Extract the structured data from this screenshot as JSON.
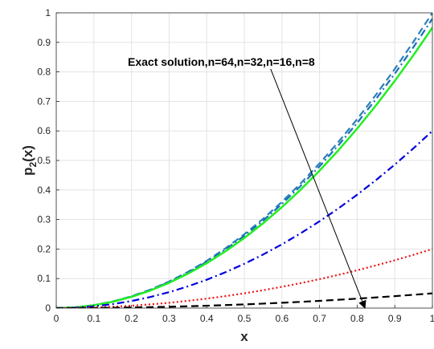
{
  "chart_data": {
    "type": "line",
    "title": "",
    "xlabel": "x",
    "ylabel_main": "p",
    "ylabel_sub": "2",
    "ylabel_tail": "(x)",
    "xlim": [
      0,
      1
    ],
    "ylim": [
      0,
      1
    ],
    "grid": true,
    "xticks": [
      0,
      0.1,
      0.2,
      0.3,
      0.4,
      0.5,
      0.6,
      0.7,
      0.8,
      0.9,
      1
    ],
    "yticks": [
      0,
      0.1,
      0.2,
      0.3,
      0.4,
      0.5,
      0.6,
      0.7,
      0.8,
      0.9,
      1
    ],
    "xtick_labels": [
      "0",
      "0.1",
      "0.2",
      "0.3",
      "0.4",
      "0.5",
      "0.6",
      "0.7",
      "0.8",
      "0.9",
      "1"
    ],
    "ytick_labels": [
      "0",
      "0.1",
      "0.2",
      "0.3",
      "0.4",
      "0.5",
      "0.6",
      "0.7",
      "0.8",
      "0.9",
      "1"
    ],
    "annotation": {
      "text": "Exact solution,n=64,n=32,n=16,n=8",
      "arrow_from": [
        0.57,
        0.81
      ],
      "arrow_to": [
        0.82,
        0.0
      ]
    },
    "x": [
      0,
      0.05,
      0.1,
      0.15,
      0.2,
      0.25,
      0.3,
      0.35,
      0.4,
      0.45,
      0.5,
      0.55,
      0.6,
      0.65,
      0.7,
      0.75,
      0.8,
      0.85,
      0.9,
      0.95,
      1
    ],
    "series": [
      {
        "color": "#2a7fbd",
        "dash": "dashed",
        "values": [
          0,
          0.0025,
          0.01,
          0.0225,
          0.04,
          0.0625,
          0.09,
          0.1225,
          0.16,
          0.2025,
          0.25,
          0.3025,
          0.36,
          0.4225,
          0.49,
          0.5625,
          0.64,
          0.7225,
          0.81,
          0.9025,
          1.0
        ]
      },
      {
        "color": "#1a6fb5",
        "dash": "dashdot",
        "values": [
          0,
          0.0025,
          0.0098,
          0.0221,
          0.0392,
          0.0613,
          0.0882,
          0.12,
          0.1568,
          0.1985,
          0.245,
          0.2965,
          0.3528,
          0.414,
          0.4802,
          0.5513,
          0.6272,
          0.7081,
          0.7938,
          0.8845,
          0.98
        ]
      },
      {
        "color": "#22ee22",
        "dash": "solid",
        "values": [
          0,
          0.0024,
          0.0095,
          0.0214,
          0.038,
          0.0594,
          0.0855,
          0.1164,
          0.152,
          0.1924,
          0.2375,
          0.2874,
          0.342,
          0.4014,
          0.4655,
          0.5344,
          0.608,
          0.6864,
          0.7695,
          0.8574,
          0.95
        ]
      },
      {
        "color": "#0000dd",
        "dash": "dashdot",
        "values": [
          0,
          0.0015,
          0.006,
          0.0135,
          0.024,
          0.0375,
          0.054,
          0.0735,
          0.096,
          0.1215,
          0.15,
          0.1815,
          0.216,
          0.2535,
          0.294,
          0.3375,
          0.384,
          0.4335,
          0.486,
          0.5415,
          0.6
        ]
      },
      {
        "color": "#ee1111",
        "dash": "dotted",
        "values": [
          0,
          0.0005,
          0.002,
          0.0045,
          0.008,
          0.0125,
          0.018,
          0.0245,
          0.032,
          0.0405,
          0.05,
          0.0605,
          0.072,
          0.0845,
          0.098,
          0.1125,
          0.128,
          0.1445,
          0.162,
          0.1805,
          0.2
        ]
      },
      {
        "color": "#000000",
        "dash": "dashed",
        "values": [
          0,
          0.0001,
          0.0005,
          0.0011,
          0.002,
          0.0031,
          0.0045,
          0.0061,
          0.008,
          0.0101,
          0.0125,
          0.0151,
          0.018,
          0.0211,
          0.0245,
          0.0281,
          0.032,
          0.0361,
          0.0405,
          0.0451,
          0.05
        ]
      }
    ]
  }
}
